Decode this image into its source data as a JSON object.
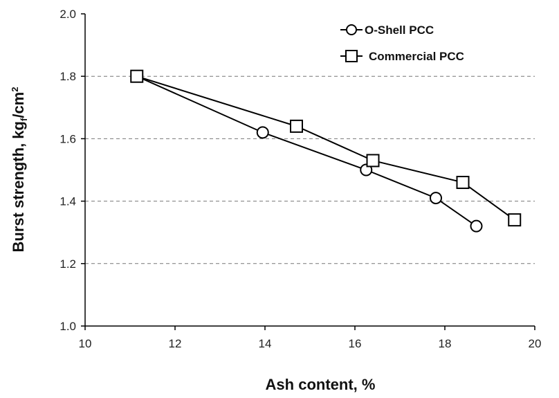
{
  "chart_data": {
    "type": "line",
    "xlabel": "Ash content, %",
    "ylabel_main": "Burst strength, kg",
    "ylabel_sub": "f",
    "ylabel_tail": "/cm",
    "ylabel_sup": "2",
    "xlim": [
      10,
      20
    ],
    "ylim": [
      1.0,
      2.0
    ],
    "xticks": [
      10,
      12,
      14,
      16,
      18,
      20
    ],
    "yticks": [
      1.0,
      1.2,
      1.4,
      1.6,
      1.8,
      2.0
    ],
    "xtick_labels": [
      "10",
      "12",
      "14",
      "16",
      "18",
      "20"
    ],
    "ytick_labels": [
      "1.0",
      "1.2",
      "1.4",
      "1.6",
      "1.8",
      "2.0"
    ],
    "grid": "horizontal dashed",
    "legend_position": "top-right",
    "series": [
      {
        "name": "O-Shell PCC",
        "marker": "circle",
        "color": "#000000",
        "x": [
          11.15,
          13.95,
          16.25,
          17.8,
          18.7
        ],
        "y": [
          1.8,
          1.62,
          1.5,
          1.41,
          1.32
        ]
      },
      {
        "name": "Commercial PCC",
        "marker": "square",
        "color": "#000000",
        "x": [
          11.15,
          14.7,
          16.4,
          18.4,
          19.55
        ],
        "y": [
          1.8,
          1.64,
          1.53,
          1.46,
          1.34
        ]
      }
    ]
  }
}
